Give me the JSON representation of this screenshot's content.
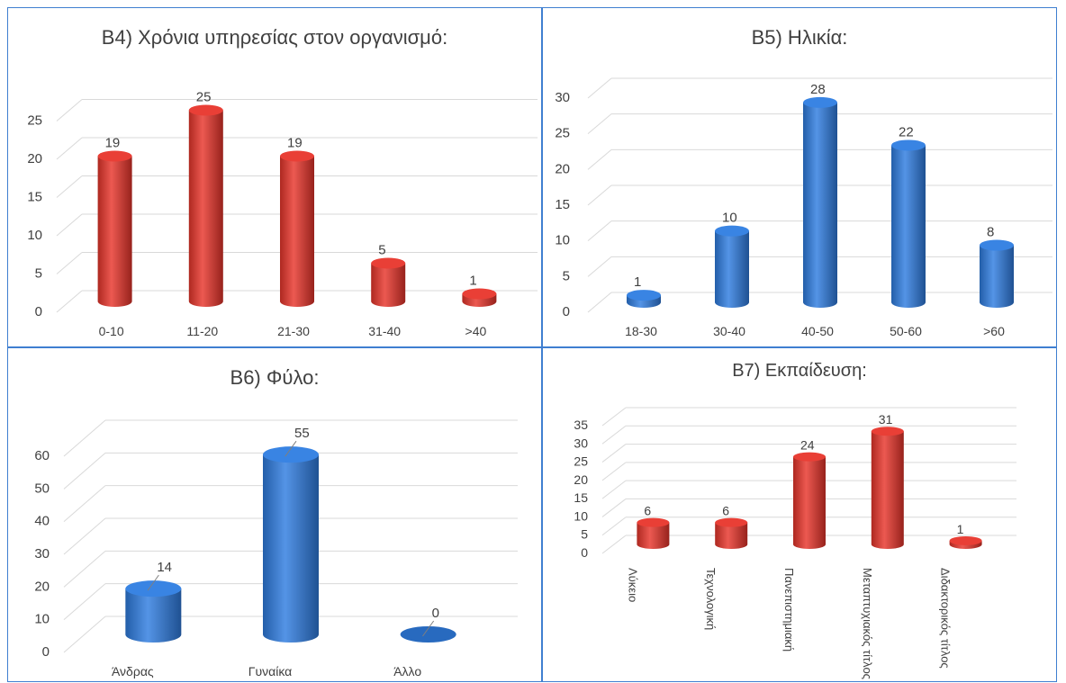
{
  "chart_data": [
    {
      "type": "bar",
      "title": "B4) Χρόνια υπηρεσίας στον οργανισμό:",
      "categories": [
        "0-10",
        "11-20",
        "21-30",
        "31-40",
        ">40"
      ],
      "values": [
        19,
        25,
        19,
        5,
        1
      ],
      "data_labels": [
        "19",
        "25",
        "19",
        "5",
        "1"
      ],
      "y_ticks": [
        "0",
        "5",
        "10",
        "15",
        "20",
        "25"
      ],
      "ylim": [
        0,
        28
      ],
      "grid": true,
      "color": "#e8352b"
    },
    {
      "type": "bar",
      "title": "B5) Ηλικία:",
      "categories": [
        "18-30",
        "30-40",
        "40-50",
        "50-60",
        ">60"
      ],
      "values": [
        1,
        10,
        28,
        22,
        8
      ],
      "data_labels": [
        "1",
        "10",
        "28",
        "22",
        "8"
      ],
      "y_ticks": [
        "0",
        "5",
        "10",
        "15",
        "20",
        "25",
        "30"
      ],
      "ylim": [
        0,
        30
      ],
      "grid": true,
      "color": "#2f7de1"
    },
    {
      "type": "bar",
      "title": "B6) Φύλο:",
      "categories": [
        "Άνδρας",
        "Γυναίκα",
        "Άλλο"
      ],
      "values": [
        14,
        55,
        0
      ],
      "data_labels": [
        "14",
        "55",
        "0"
      ],
      "y_ticks": [
        "0",
        "10",
        "20",
        "30",
        "40",
        "50",
        "60"
      ],
      "ylim": [
        0,
        60
      ],
      "grid": true,
      "color": "#2f7de1"
    },
    {
      "type": "bar",
      "title": "B7) Εκπαίδευση:",
      "categories": [
        "Λύκειο",
        "Τεχνολογική",
        "Πανεπιστημιακή",
        "Μεταπτυχιακός τίτλος",
        "Διδακτορικός τίτλος"
      ],
      "values": [
        6,
        6,
        24,
        31,
        1
      ],
      "data_labels": [
        "6",
        "6",
        "24",
        "31",
        "1"
      ],
      "y_ticks": [
        "0",
        "5",
        "10",
        "15",
        "20",
        "25",
        "30",
        "35"
      ],
      "ylim": [
        0,
        35
      ],
      "grid": true,
      "color": "#e8352b"
    }
  ]
}
